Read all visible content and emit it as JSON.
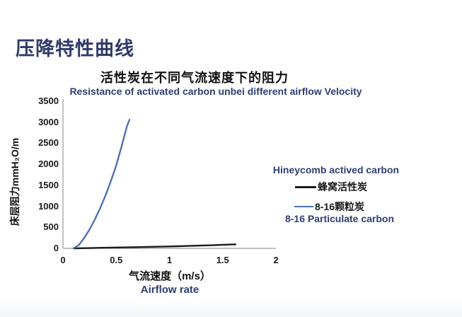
{
  "slide": {
    "title": "压降特性曲线"
  },
  "chart_data": {
    "type": "line",
    "title_cn": "活性炭在不同气流速度下的阻力",
    "title_en": "Resistance of activated carbon unbei different airflow Velocity",
    "xlabel_cn": "气流速度（m/s）",
    "xlabel_en": "Airflow rate",
    "ylabel": "床层阻力mmH₂O/m",
    "xlim": [
      0,
      2
    ],
    "ylim": [
      0,
      3500
    ],
    "x_ticks": [
      "0",
      "0.5",
      "1",
      "1.5",
      "2"
    ],
    "y_ticks": [
      "0",
      "500",
      "1000",
      "1500",
      "2000",
      "2500",
      "3000",
      "3500"
    ],
    "grid": false,
    "legend_position": "right",
    "series": [
      {
        "name_cn": "蜂窝活性炭",
        "name_en": "Hineycomb actived carbon",
        "color": "#1a1a1a",
        "line_width": 2.4,
        "x": [
          0.1,
          0.2,
          0.4,
          0.6,
          0.8,
          1.0,
          1.2,
          1.4,
          1.62
        ],
        "y": [
          0,
          5,
          15,
          25,
          35,
          45,
          60,
          75,
          95
        ]
      },
      {
        "name_cn": "8-16颗粒炭",
        "name_en": "8-16 Particulate carbon",
        "color": "#4a6fae",
        "line_width": 2.3,
        "x": [
          0.1,
          0.15,
          0.2,
          0.25,
          0.3,
          0.35,
          0.4,
          0.45,
          0.5,
          0.55,
          0.6,
          0.625
        ],
        "y": [
          0,
          80,
          250,
          450,
          690,
          960,
          1260,
          1600,
          1970,
          2420,
          2900,
          3060
        ]
      }
    ]
  },
  "colors": {
    "navy_text": "#2e3d74",
    "axis_line": "#9b9b9b",
    "title_navy": "#303a6a"
  }
}
